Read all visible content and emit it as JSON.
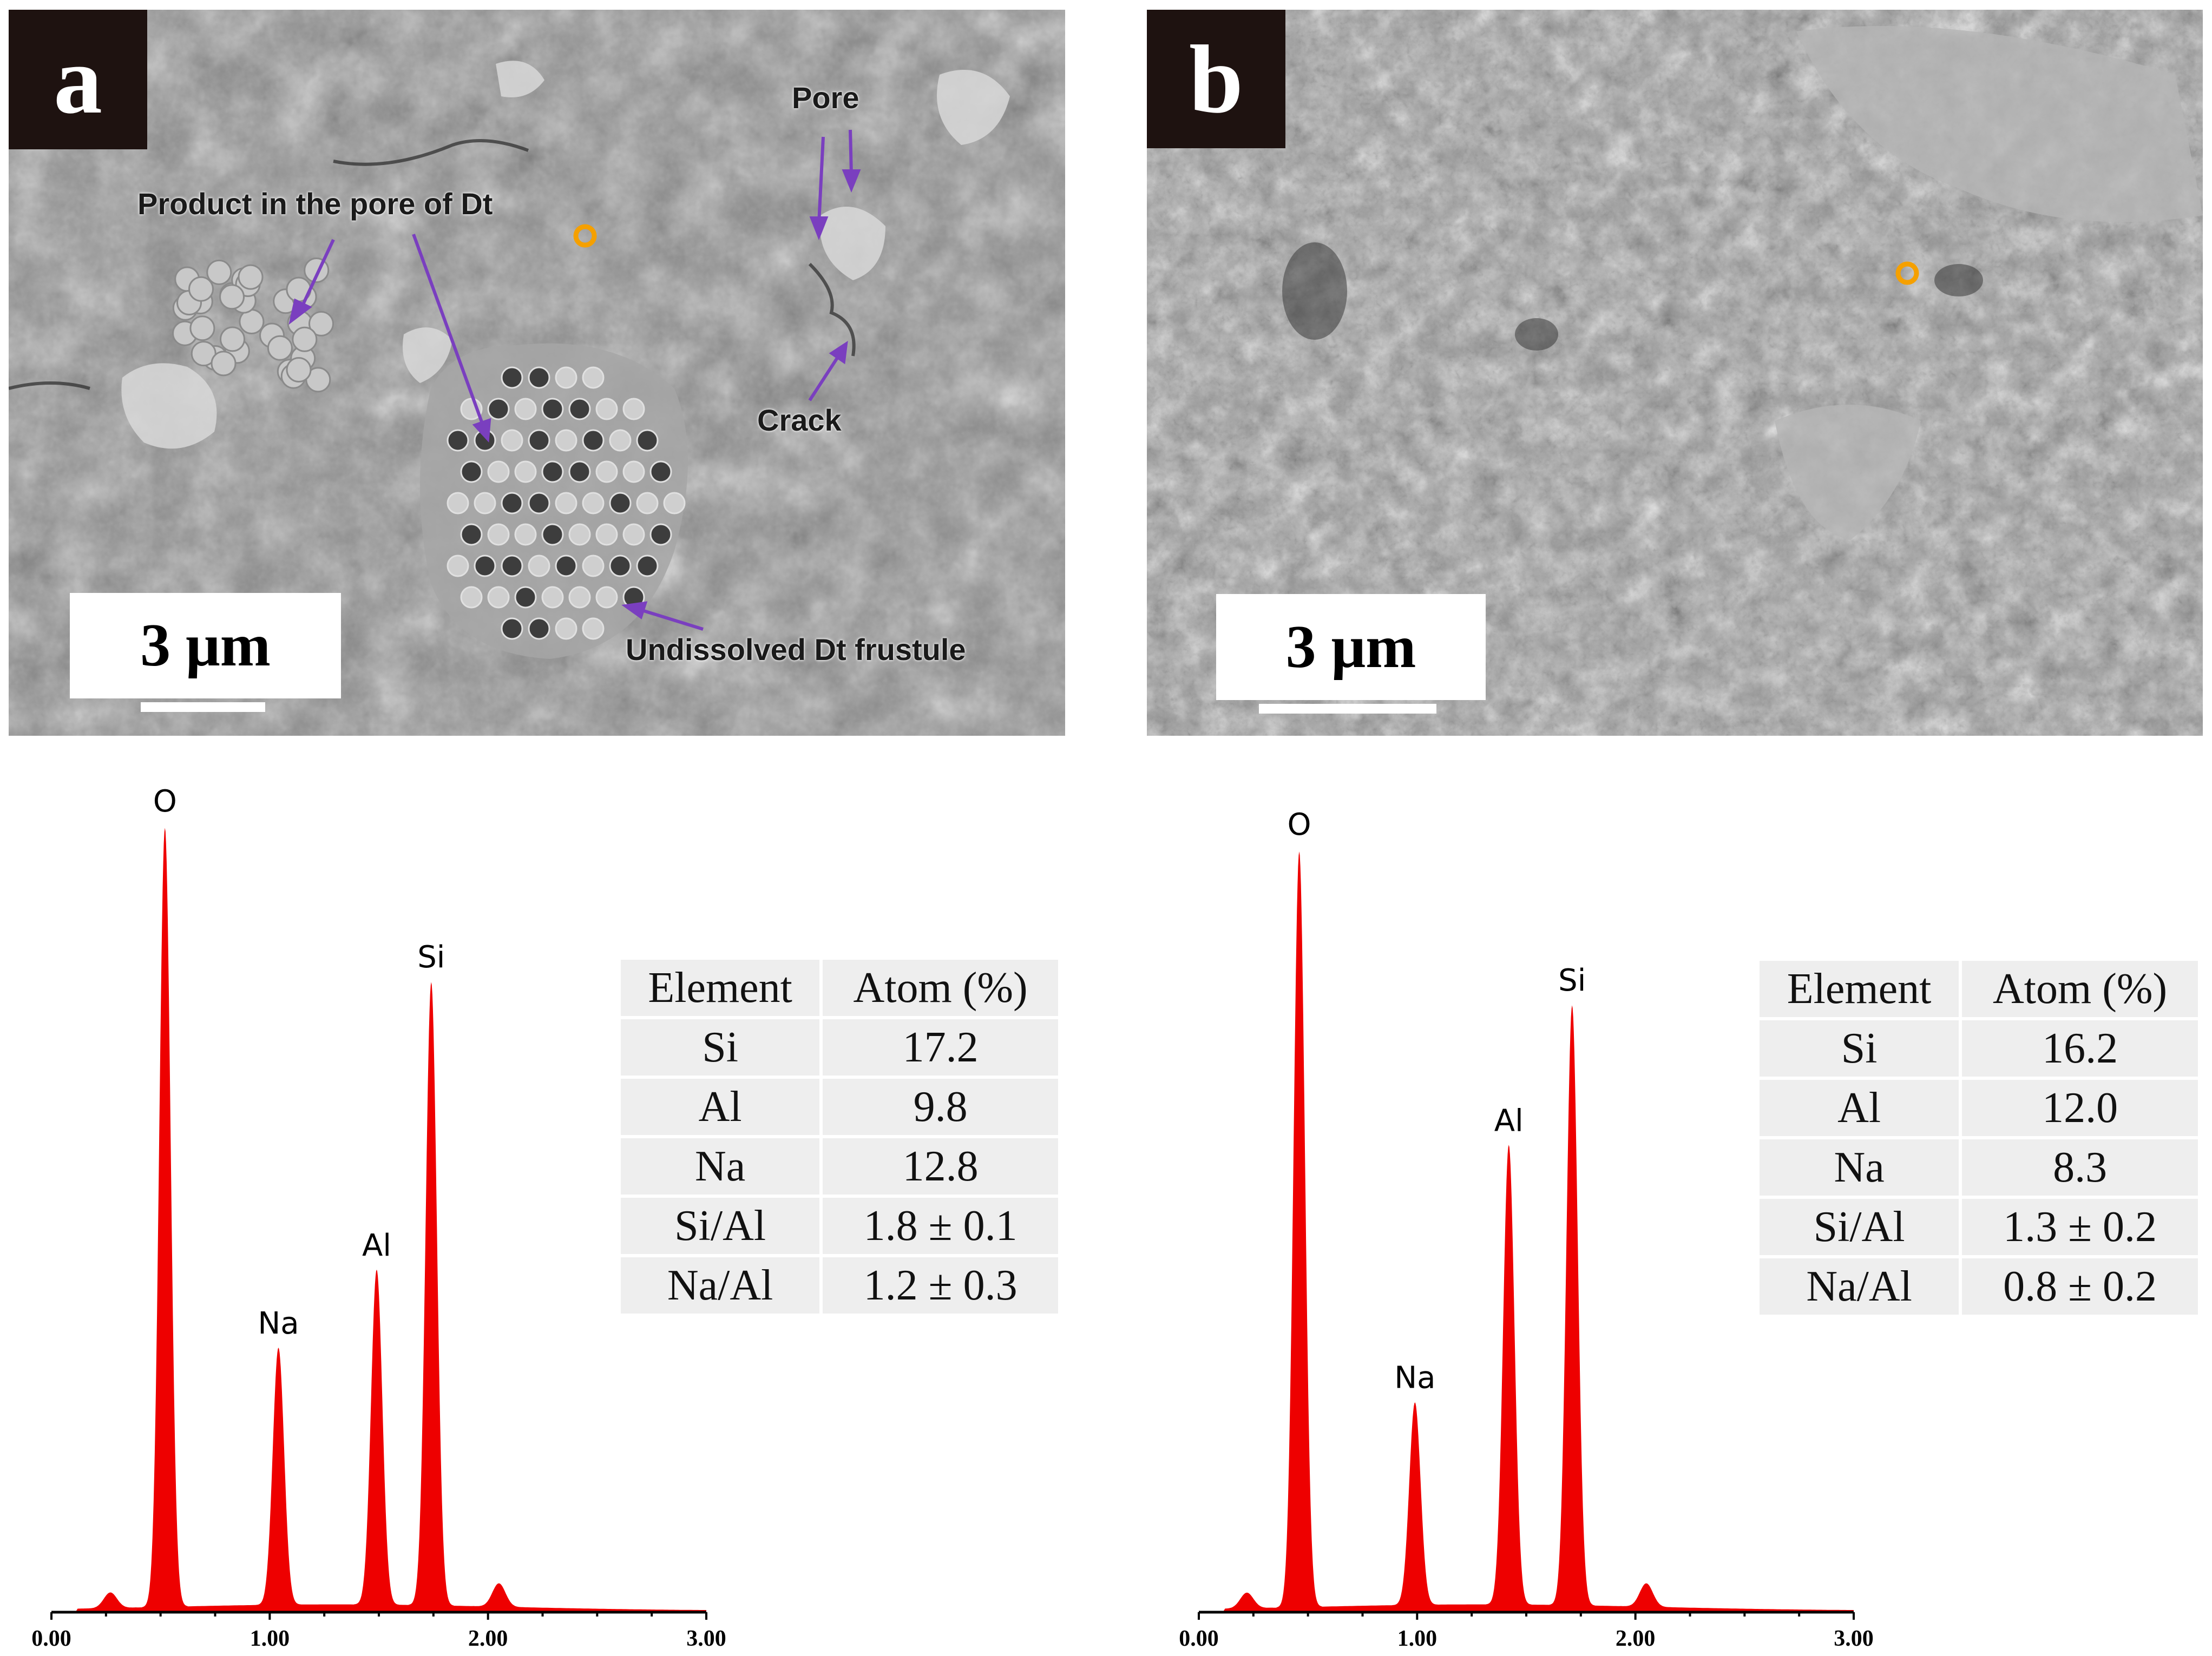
{
  "panels": [
    {
      "id": "a",
      "label": "a",
      "scale_text": "3 μm",
      "annotations": {
        "pore": "Pore",
        "product": "Product in the pore of Dt",
        "crack": "Crack",
        "frustule": "Undissolved Dt frustule"
      },
      "table": {
        "headers": [
          "Element",
          "Atom (%)"
        ],
        "rows": [
          [
            "Si",
            "17.2"
          ],
          [
            "Al",
            "9.8"
          ],
          [
            "Na",
            "12.8"
          ],
          [
            "Si/Al",
            "1.8 ± 0.1"
          ],
          [
            "Na/Al",
            "1.2 ± 0.3"
          ]
        ]
      }
    },
    {
      "id": "b",
      "label": "b",
      "scale_text": "3 μm",
      "table": {
        "headers": [
          "Element",
          "Atom (%)"
        ],
        "rows": [
          [
            "Si",
            "16.2"
          ],
          [
            "Al",
            "12.0"
          ],
          [
            "Na",
            "8.3"
          ],
          [
            "Si/Al",
            "1.3 ± 0.2"
          ],
          [
            "Na/Al",
            "0.8 ± 0.2"
          ]
        ]
      }
    }
  ],
  "colors": {
    "spectrum": "#ee0000",
    "arrow": "#7a3fbf",
    "marker": "#f5a000",
    "badge": "#1e1210"
  },
  "chart_data": [
    {
      "type": "line",
      "panel": "a",
      "xlim": [
        0,
        3
      ],
      "xticks": [
        "0.00",
        "1.00",
        "2.00",
        "3.00"
      ],
      "ylim": [
        0,
        1
      ],
      "peaks": [
        {
          "label": "O",
          "x": 0.52,
          "y": 1.0
        },
        {
          "label": "Na",
          "x": 1.04,
          "y": 0.33
        },
        {
          "label": "Al",
          "x": 1.49,
          "y": 0.43
        },
        {
          "label": "Si",
          "x": 1.74,
          "y": 0.8
        }
      ],
      "minor_peaks": [
        {
          "x": 0.27,
          "y": 0.02
        },
        {
          "x": 2.05,
          "y": 0.03
        }
      ]
    },
    {
      "type": "line",
      "panel": "b",
      "xlim": [
        0,
        3
      ],
      "xticks": [
        "0.00",
        "1.00",
        "2.00",
        "3.00"
      ],
      "ylim": [
        0,
        1
      ],
      "peaks": [
        {
          "label": "O",
          "x": 0.46,
          "y": 0.97
        },
        {
          "label": "Na",
          "x": 0.99,
          "y": 0.26
        },
        {
          "label": "Al",
          "x": 1.42,
          "y": 0.59
        },
        {
          "label": "Si",
          "x": 1.71,
          "y": 0.77
        }
      ],
      "minor_peaks": [
        {
          "x": 0.22,
          "y": 0.02
        },
        {
          "x": 2.05,
          "y": 0.03
        }
      ]
    }
  ]
}
